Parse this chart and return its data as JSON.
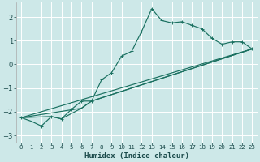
{
  "background_color": "#cde8e8",
  "grid_color": "#ffffff",
  "line_color": "#1a7060",
  "xlabel": "Humidex (Indice chaleur)",
  "xlim": [
    -0.5,
    23.5
  ],
  "ylim": [
    -3.3,
    2.6
  ],
  "yticks": [
    -3,
    -2,
    -1,
    0,
    1,
    2
  ],
  "xticks": [
    0,
    1,
    2,
    3,
    4,
    5,
    6,
    7,
    8,
    9,
    10,
    11,
    12,
    13,
    14,
    15,
    16,
    17,
    18,
    19,
    20,
    21,
    22,
    23
  ],
  "line1_x": [
    0,
    1,
    2,
    3,
    4,
    5,
    6,
    7,
    8,
    9,
    10,
    11,
    12,
    13,
    14,
    15,
    16,
    17,
    18,
    19,
    20,
    21,
    22,
    23
  ],
  "line1_y": [
    -2.25,
    -2.4,
    -2.6,
    -2.2,
    -2.3,
    -1.9,
    -1.55,
    -1.55,
    -0.65,
    -0.35,
    0.35,
    0.55,
    1.4,
    2.35,
    1.85,
    1.75,
    1.8,
    1.65,
    1.5,
    1.1,
    0.85,
    0.95,
    0.95,
    0.65
  ],
  "line2_x": [
    0,
    23
  ],
  "line2_y": [
    -2.25,
    0.65
  ],
  "line3_x": [
    0,
    6,
    7,
    23
  ],
  "line3_y": [
    -2.25,
    -1.85,
    -1.55,
    0.65
  ],
  "line4_x": [
    0,
    3,
    4,
    6,
    7,
    23
  ],
  "line4_y": [
    -2.25,
    -2.2,
    -2.3,
    -1.85,
    -1.55,
    0.65
  ]
}
